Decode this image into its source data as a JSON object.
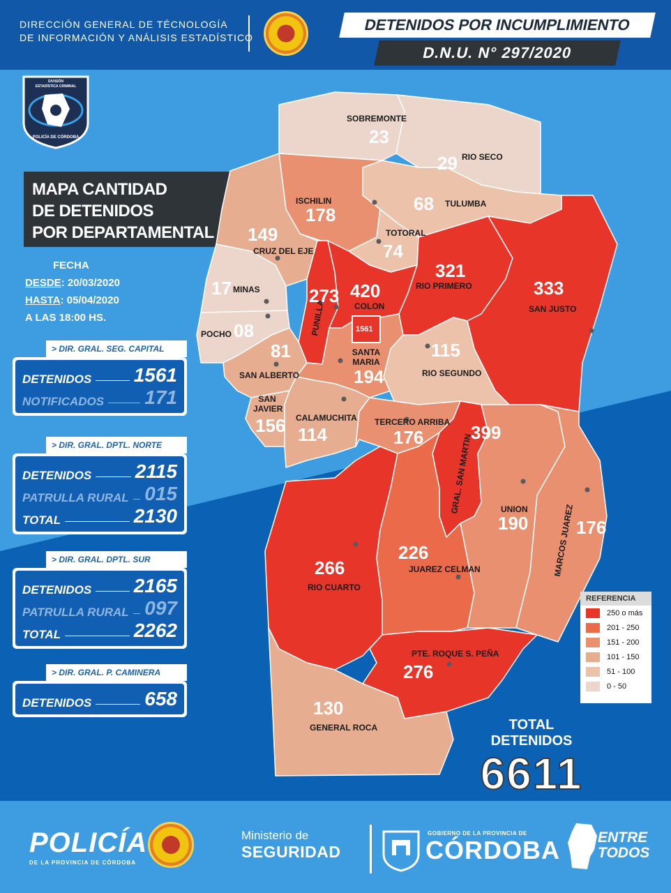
{
  "header": {
    "org_line1": "DIRECCIÓN GENERAL DE TÉCNOLOGÍA",
    "org_line2": "DE INFORMACIÓN Y ANÁLISIS ESTADÍSTICO",
    "title_line1": "DETENIDOS POR INCUMPLIMIENTO",
    "title_line2": "D.N.U. N° 297/2020"
  },
  "badge": {
    "line1": "DIVISIÓN",
    "line2": "ESTADÍSTICA CRIMINAL",
    "line3": "POLICÍA DE CÓRDOBA"
  },
  "map_title": {
    "line1": "MAPA CANTIDAD",
    "line2": "DE DETENIDOS",
    "line3": "POR DEPARTAMENTAL"
  },
  "dates": {
    "label": "FECHA",
    "desde_label": "DESDE",
    "desde_value": ": 20/03/2020",
    "hasta_label": "HASTA",
    "hasta_value": ": 05/04/2020",
    "hora": "A LAS 18:00 HS."
  },
  "panels": [
    {
      "title": "> DIR. GRAL. SEG. CAPITAL",
      "rows": [
        {
          "label": "DETENIDOS",
          "value": "1561"
        },
        {
          "label": "NOTIFICADOS",
          "value": "171"
        }
      ]
    },
    {
      "title": "> DIR. GRAL. DPTL. NORTE",
      "rows": [
        {
          "label": "DETENIDOS",
          "value": "2115"
        },
        {
          "label": "PATRULLA RURAL",
          "value": "015"
        },
        {
          "label": "TOTAL",
          "value": "2130"
        }
      ]
    },
    {
      "title": "> DIR. GRAL. DPTL. SUR",
      "rows": [
        {
          "label": "DETENIDOS",
          "value": "2165"
        },
        {
          "label": "PATRULLA RURAL",
          "value": "097"
        },
        {
          "label": "TOTAL",
          "value": "2262"
        }
      ]
    },
    {
      "title": "> DIR. GRAL. P. CAMINERA",
      "rows": [
        {
          "label": "DETENIDOS",
          "value": "658"
        }
      ]
    }
  ],
  "departments": [
    {
      "name": "SOBREMONTE",
      "value": "23"
    },
    {
      "name": "RIO SECO",
      "value": "29"
    },
    {
      "name": "TULUMBA",
      "value": "68"
    },
    {
      "name": "ISCHILIN",
      "value": "178"
    },
    {
      "name": "TOTORAL",
      "value": "74"
    },
    {
      "name": "CRUZ DEL EJE",
      "value": "149"
    },
    {
      "name": "MINAS",
      "value": "17"
    },
    {
      "name": "POCHO",
      "value": "08"
    },
    {
      "name": "PUNILLA",
      "value": "273"
    },
    {
      "name": "COLON",
      "value": "420"
    },
    {
      "name": "RIO PRIMERO",
      "value": "321"
    },
    {
      "name": "SAN JUSTO",
      "value": "333"
    },
    {
      "name": "SAN ALBERTO",
      "value": "81"
    },
    {
      "name": "SANTA MARIA",
      "value": "194"
    },
    {
      "name": "RIO SEGUNDO",
      "value": "115"
    },
    {
      "name": "SAN JAVIER",
      "value": "156"
    },
    {
      "name": "CALAMUCHITA",
      "value": "114"
    },
    {
      "name": "TERCERO ARRIBA",
      "value": "176"
    },
    {
      "name": "GRAL. SAN MARTIN",
      "value": "399"
    },
    {
      "name": "UNION",
      "value": "190"
    },
    {
      "name": "MARCOS JUAREZ",
      "value": "176"
    },
    {
      "name": "RIO CUARTO",
      "value": "266"
    },
    {
      "name": "JUAREZ CELMAN",
      "value": "226"
    },
    {
      "name": "PTE. ROQUE S. PEÑA",
      "value": "276"
    },
    {
      "name": "GENERAL ROCA",
      "value": "130"
    }
  ],
  "capital_value": "1561",
  "legend": {
    "title": "REFERENCIA",
    "items": [
      {
        "label": "250 o más",
        "color": "#e8352a"
      },
      {
        "label": "201 - 250",
        "color": "#ea6a4a"
      },
      {
        "label": "151 - 200",
        "color": "#e8906f"
      },
      {
        "label": "101 - 150",
        "color": "#e6ad90"
      },
      {
        "label": "51 - 100",
        "color": "#ecc2ab"
      },
      {
        "label": "0 - 50",
        "color": "#ecd6cb"
      }
    ]
  },
  "total": {
    "label": "TOTAL DETENIDOS",
    "value": "6611"
  },
  "footer": {
    "policia": "POLICÍA",
    "policia_sub": "DE LA PROVINCIA DE CÓRDOBA",
    "ministerio_line1": "Ministerio de",
    "ministerio_line2": "SEGURIDAD",
    "gobierno": "GOBIERNO DE LA PROVINCIA DE",
    "cordoba": "CÓRDOBA",
    "entre_line1": "ENTRE",
    "entre_line2": "TODOS"
  },
  "colors": {
    "background": "#0b62b4",
    "band": "#3d9de0",
    "panel_blue": "#115fb2",
    "dark": "#2f3439"
  }
}
